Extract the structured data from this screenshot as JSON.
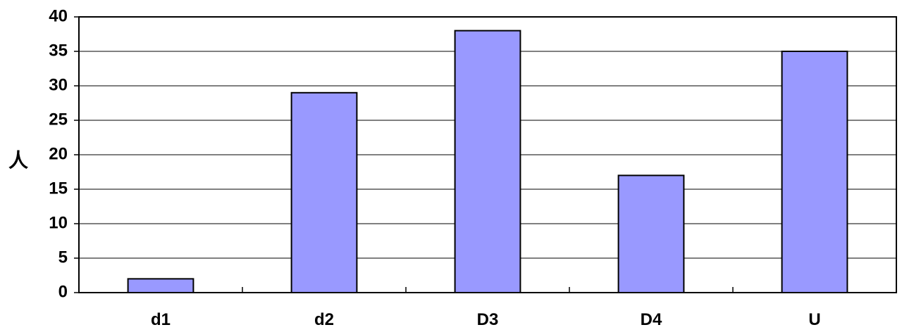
{
  "chart_data": {
    "type": "bar",
    "title": "",
    "xlabel": "",
    "ylabel": "人",
    "categories": [
      "d1",
      "d2",
      "D3",
      "D4",
      "U"
    ],
    "values": [
      2,
      29,
      38,
      17,
      35
    ],
    "ylim": [
      0,
      40
    ],
    "yticks": [
      0,
      5,
      10,
      15,
      20,
      25,
      30,
      35,
      40
    ],
    "grid": true,
    "legend": "none",
    "colors": {
      "bar_fill": "#9999ff",
      "bar_stroke": "#000000",
      "grid": "#000000",
      "background": "#ffffff"
    }
  }
}
